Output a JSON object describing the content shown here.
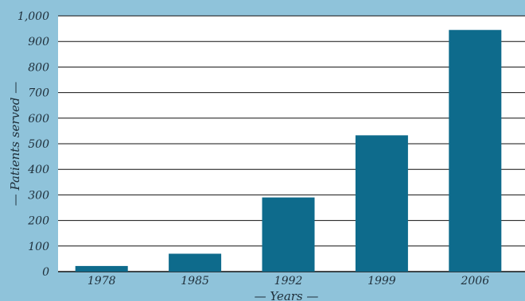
{
  "chart_data": {
    "type": "bar",
    "title": "",
    "xlabel": "— Years —",
    "ylabel": "— Patients served —",
    "categories": [
      "1978",
      "1985",
      "1992",
      "1999",
      "2006"
    ],
    "values": [
      22,
      70,
      290,
      533,
      945
    ],
    "ylim": [
      0,
      1000
    ],
    "yticks": [
      0,
      100,
      200,
      300,
      400,
      500,
      600,
      700,
      800,
      900,
      1000
    ],
    "ytick_labels": [
      "0",
      "100",
      "200",
      "300",
      "400",
      "500",
      "600",
      "700",
      "800",
      "900",
      "1,000"
    ],
    "grid": true,
    "legend": "none",
    "colors": {
      "background": "#8fc3da",
      "plot_area": "#ffffff",
      "bar": "#0e6b8c",
      "grid": "#111111",
      "text": "#1f2f3a"
    }
  }
}
